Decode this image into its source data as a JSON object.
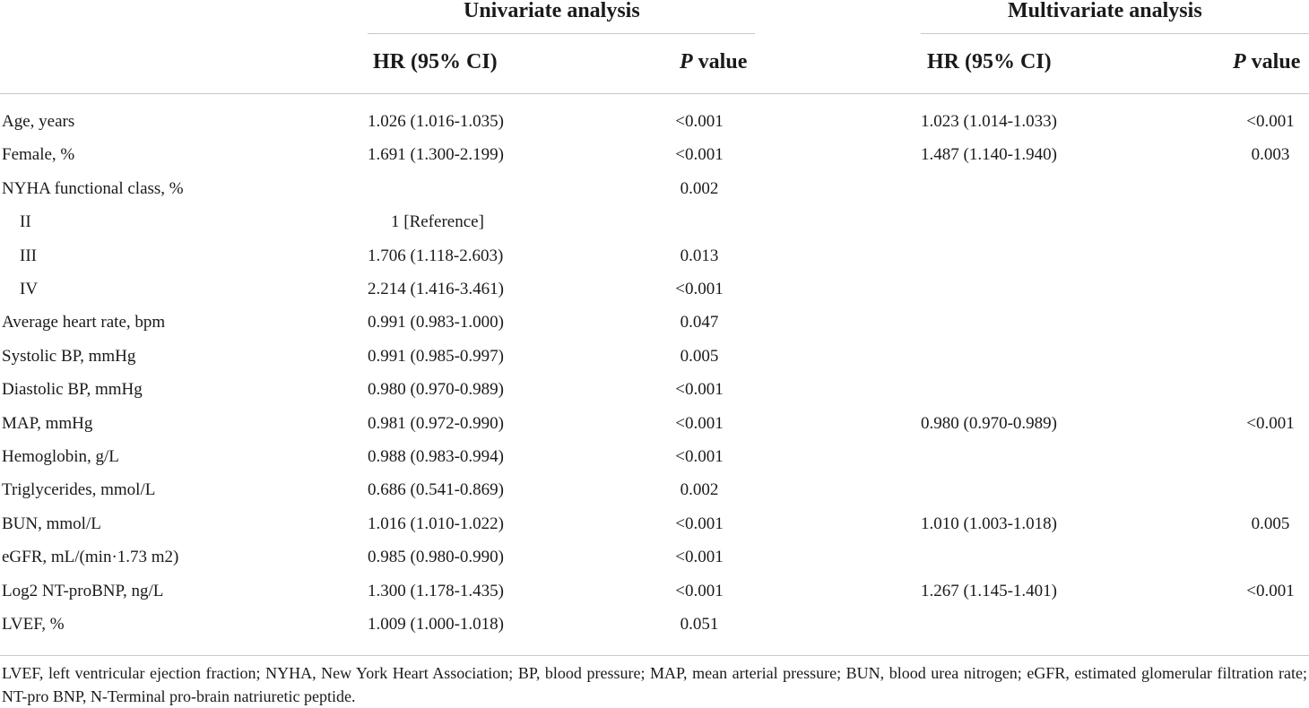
{
  "headers": {
    "univariate": "Univariate analysis",
    "multivariate": "Multivariate analysis",
    "hr_label": "HR (95% CI)",
    "p_italic": "P",
    "p_rest": " value"
  },
  "rows": [
    {
      "label": "Age, years",
      "u_hr": "1.026 (1.016-1.035)",
      "u_p": "<0.001",
      "m_hr": "1.023 (1.014-1.033)",
      "m_p": "<0.001"
    },
    {
      "label": "Female, %",
      "u_hr": "1.691 (1.300-2.199)",
      "u_p": "<0.001",
      "m_hr": "1.487 (1.140-1.940)",
      "m_p": "0.003"
    },
    {
      "label": "NYHA functional class, %",
      "u_hr": "",
      "u_p": "0.002",
      "m_hr": "",
      "m_p": ""
    },
    {
      "label": "II",
      "u_hr": "1 [Reference]",
      "u_p": "",
      "m_hr": "",
      "m_p": ""
    },
    {
      "label": "III",
      "u_hr": "1.706 (1.118-2.603)",
      "u_p": "0.013",
      "m_hr": "",
      "m_p": ""
    },
    {
      "label": "IV",
      "u_hr": "2.214 (1.416-3.461)",
      "u_p": "<0.001",
      "m_hr": "",
      "m_p": ""
    },
    {
      "label": "Average heart rate, bpm",
      "u_hr": "0.991 (0.983-1.000)",
      "u_p": "0.047",
      "m_hr": "",
      "m_p": ""
    },
    {
      "label": "Systolic BP, mmHg",
      "u_hr": "0.991 (0.985-0.997)",
      "u_p": "0.005",
      "m_hr": "",
      "m_p": ""
    },
    {
      "label": "Diastolic BP, mmHg",
      "u_hr": "0.980 (0.970-0.989)",
      "u_p": "<0.001",
      "m_hr": "",
      "m_p": ""
    },
    {
      "label": "MAP, mmHg",
      "u_hr": "0.981 (0.972-0.990)",
      "u_p": "<0.001",
      "m_hr": "0.980 (0.970-0.989)",
      "m_p": "<0.001"
    },
    {
      "label": "Hemoglobin, g/L",
      "u_hr": "0.988 (0.983-0.994)",
      "u_p": "<0.001",
      "m_hr": "",
      "m_p": ""
    },
    {
      "label": "Triglycerides, mmol/L",
      "u_hr": "0.686 (0.541-0.869)",
      "u_p": "0.002",
      "m_hr": "",
      "m_p": ""
    },
    {
      "label": "BUN, mmol/L",
      "u_hr": "1.016 (1.010-1.022)",
      "u_p": "<0.001",
      "m_hr": "1.010 (1.003-1.018)",
      "m_p": "0.005"
    },
    {
      "label": "eGFR, mL/(min·1.73 m2)",
      "u_hr": "0.985 (0.980-0.990)",
      "u_p": "<0.001",
      "m_hr": "",
      "m_p": ""
    },
    {
      "label": "Log2 NT-proBNP, ng/L",
      "u_hr": "1.300 (1.178-1.435)",
      "u_p": "<0.001",
      "m_hr": "1.267 (1.145-1.401)",
      "m_p": "<0.001"
    },
    {
      "label": "LVEF, %",
      "u_hr": "1.009 (1.000-1.018)",
      "u_p": "0.051",
      "m_hr": "",
      "m_p": ""
    }
  ],
  "footnote": "LVEF, left ventricular ejection fraction; NYHA, New York Heart Association; BP, blood pressure; MAP, mean arterial pressure; BUN, blood urea nitrogen; eGFR, estimated glomerular filtration rate; NT-pro BNP, N-Terminal pro-brain natriuretic peptide."
}
